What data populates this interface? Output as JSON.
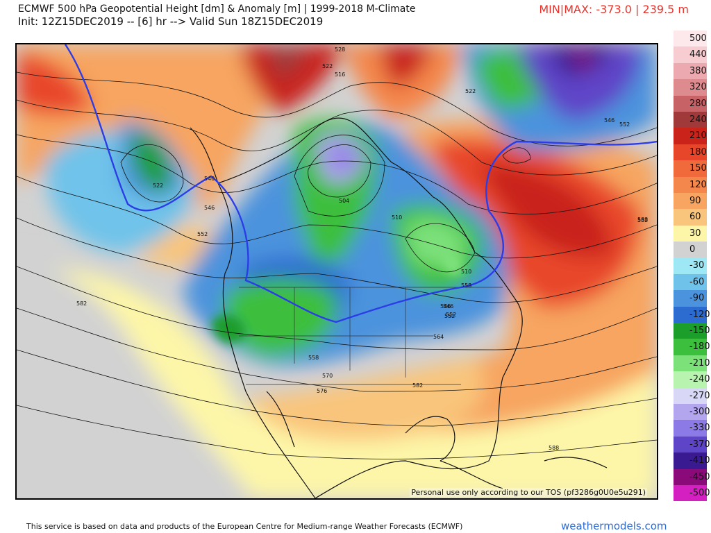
{
  "header": {
    "title": "ECMWF 500 hPa Geopotential Height [dm] & Anomaly [m] | 1999-2018 M-Climate",
    "subtitle": "Init: 12Z15DEC2019 -- [6] hr --> Valid Sun 18Z15DEC2019",
    "minmax": "MIN|MAX: -373.0 | 239.5 m"
  },
  "map": {
    "watermark": "Personal use only according to our TOS (pf3286g0U0e5u291)",
    "contour_labels": [
      "528",
      "522",
      "516",
      "522",
      "510",
      "504",
      "510",
      "546",
      "552",
      "522",
      "546",
      "552",
      "558",
      "546",
      "552",
      "582",
      "558",
      "570",
      "576",
      "582",
      "564",
      "552",
      "546",
      "540",
      "552",
      "588",
      "588"
    ]
  },
  "legend": {
    "labels": [
      "500",
      "440",
      "380",
      "320",
      "280",
      "240",
      "210",
      "180",
      "150",
      "120",
      "90",
      "60",
      "30",
      "0",
      "-30",
      "-60",
      "-90",
      "-120",
      "-150",
      "-180",
      "-210",
      "-240",
      "-270",
      "-300",
      "-330",
      "-370",
      "-410",
      "-450",
      "-500"
    ],
    "colors": [
      "#fde9ec",
      "#f7cdd2",
      "#ecaab0",
      "#dd8b8e",
      "#c76266",
      "#a03a3a",
      "#c9231a",
      "#e8462a",
      "#f06a3c",
      "#f4874b",
      "#f7a561",
      "#f9c57c",
      "#fdf6a8",
      "#d2d2d2",
      "#9ee7f4",
      "#6fc3ea",
      "#4b93dd",
      "#2c6bd0",
      "#1b9e2a",
      "#3cbf3c",
      "#7de17a",
      "#b8f3b0",
      "#d8d8f6",
      "#b3a6ef",
      "#8c7ae6",
      "#5e45c8",
      "#3a1a90",
      "#8a0a7a",
      "#d420c0"
    ]
  },
  "footer": {
    "text": "This service is based on data and products of the European Centre for Medium-range Weather Forecasts (ECMWF)",
    "brand": "weathermodels.com"
  }
}
